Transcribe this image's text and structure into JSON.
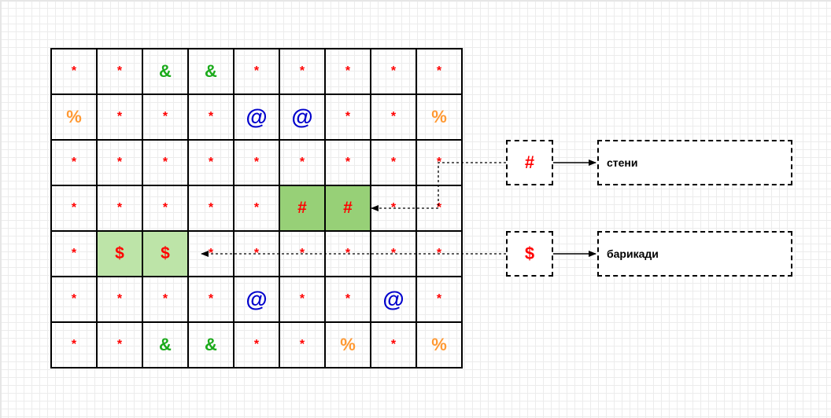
{
  "grid": {
    "rows": [
      [
        "*",
        "*",
        "&",
        "&",
        "*",
        "*",
        "*",
        "*",
        "*"
      ],
      [
        "%",
        "*",
        "*",
        "*",
        "@",
        "@",
        "*",
        "*",
        "%"
      ],
      [
        "*",
        "*",
        "*",
        "*",
        "*",
        "*",
        "*",
        "*",
        "*"
      ],
      [
        "*",
        "*",
        "*",
        "*",
        "*",
        "#",
        "#",
        "*",
        "*"
      ],
      [
        "*",
        "$",
        "$",
        "*",
        "*",
        "*",
        "*",
        "*",
        "*"
      ],
      [
        "*",
        "*",
        "*",
        "*",
        "@",
        "*",
        "*",
        "@",
        "*"
      ],
      [
        "*",
        "*",
        "&",
        "&",
        "*",
        "*",
        "%",
        "*",
        "%"
      ]
    ]
  },
  "legend": [
    {
      "symbol": "#",
      "label": "стени"
    },
    {
      "symbol": "$",
      "label": "барикади"
    }
  ],
  "colors": {
    "star": "#ff0000",
    "amp": "#1aaa1a",
    "at": "#0000cc",
    "percent": "#ff9933",
    "wall_fill": "#97d077",
    "barricade_fill": "#bde4a8"
  }
}
